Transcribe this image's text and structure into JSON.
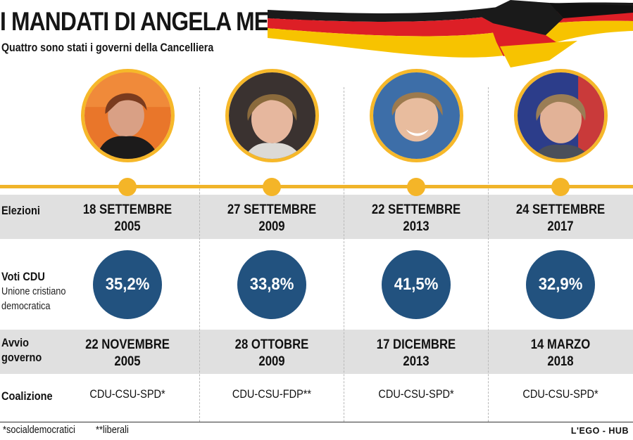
{
  "header": {
    "title": "I MANDATI DI ANGELA MERKEL",
    "subtitle": "Quattro sono stati i governi della Cancelliera"
  },
  "flag_colors": [
    "#1a1a1a",
    "#dd1f26",
    "#f7c300"
  ],
  "accent_color": "#f4b528",
  "vote_circle_color": "#22527f",
  "row_labels": {
    "elezioni": "Elezioni",
    "voti": "Voti CDU",
    "voti_sub_1": "Unione cristiano",
    "voti_sub_2": "democratica",
    "avvio_1": "Avvio",
    "avvio_2": "governo",
    "coalizione": "Coalizione"
  },
  "mandates": [
    {
      "elezioni_1": "18 SETTEMBRE",
      "elezioni_2": "2005",
      "voti": "35,2%",
      "avvio_1": "22 NOVEMBRE",
      "avvio_2": "2005",
      "coalizione": "CDU-CSU-SPD*"
    },
    {
      "elezioni_1": "27 SETTEMBRE",
      "elezioni_2": "2009",
      "voti": "33,8%",
      "avvio_1": "28 OTTOBRE",
      "avvio_2": "2009",
      "coalizione": "CDU-CSU-FDP**"
    },
    {
      "elezioni_1": "22 SETTEMBRE",
      "elezioni_2": "2013",
      "voti": "41,5%",
      "avvio_1": "17 DICEMBRE",
      "avvio_2": "2013",
      "coalizione": "CDU-CSU-SPD*"
    },
    {
      "elezioni_1": "24 SETTEMBRE",
      "elezioni_2": "2017",
      "voti": "32,9%",
      "avvio_1": "14 MARZO",
      "avvio_2": "2018",
      "coalizione": "CDU-CSU-SPD*"
    }
  ],
  "footer": {
    "note_1": "*socialdemocratici",
    "note_2": "**liberali",
    "credit": "L'EGO - HUB"
  }
}
